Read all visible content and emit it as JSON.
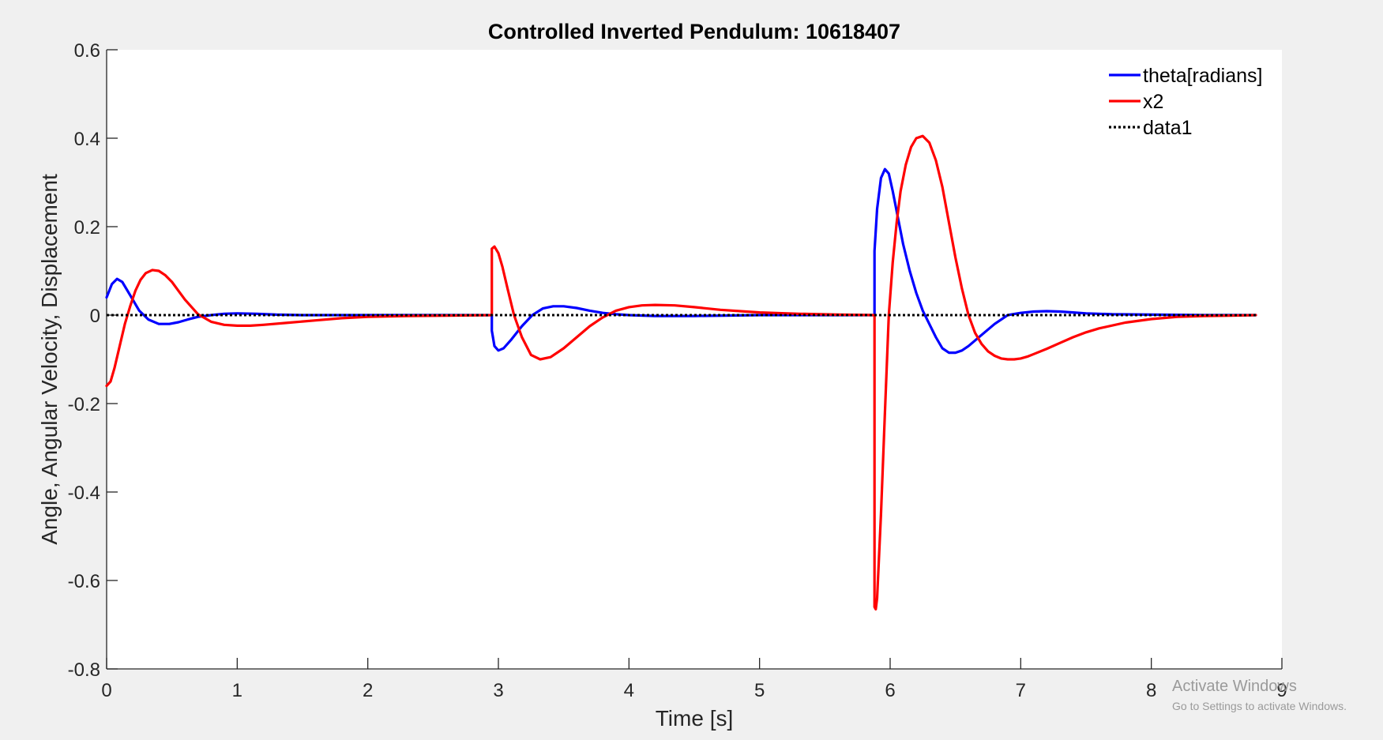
{
  "chart_data": {
    "type": "line",
    "title": "Controlled Inverted Pendulum: 10618407",
    "xlabel": "Time [s]",
    "ylabel": "Angle, Angular Velocity, Displacement",
    "xlim": [
      0,
      9
    ],
    "ylim": [
      -0.8,
      0.6
    ],
    "xticks": [
      0,
      1,
      2,
      3,
      4,
      5,
      6,
      7,
      8,
      9
    ],
    "yticks": [
      -0.8,
      -0.6,
      -0.4,
      -0.2,
      0,
      0.2,
      0.4,
      0.6
    ],
    "xtick_labels": [
      "0",
      "1",
      "2",
      "3",
      "4",
      "5",
      "6",
      "7",
      "8",
      "9"
    ],
    "ytick_labels": [
      "-0.8",
      "-0.6",
      "-0.4",
      "-0.2",
      "0",
      "0.2",
      "0.4",
      "0.6"
    ],
    "grid": false,
    "legend_position": "top-right",
    "series": [
      {
        "name": "theta[radians]",
        "color": "#0000ff",
        "style": "solid",
        "x": [
          0,
          0.04,
          0.08,
          0.12,
          0.18,
          0.25,
          0.32,
          0.4,
          0.48,
          0.55,
          0.62,
          0.7,
          0.8,
          0.9,
          1.0,
          1.15,
          1.3,
          1.5,
          1.8,
          2.2,
          2.6,
          2.95,
          2.95,
          2.97,
          3.0,
          3.04,
          3.1,
          3.18,
          3.26,
          3.34,
          3.42,
          3.5,
          3.6,
          3.7,
          3.8,
          3.9,
          4.0,
          4.2,
          4.5,
          5.0,
          5.5,
          5.88,
          5.88,
          5.9,
          5.93,
          5.96,
          5.99,
          6.02,
          6.06,
          6.1,
          6.15,
          6.2,
          6.25,
          6.3,
          6.35,
          6.4,
          6.45,
          6.5,
          6.55,
          6.6,
          6.7,
          6.8,
          6.9,
          7.0,
          7.1,
          7.2,
          7.3,
          7.4,
          7.5,
          7.7,
          8.0,
          8.4,
          8.8
        ],
        "y": [
          0.04,
          0.07,
          0.082,
          0.075,
          0.045,
          0.01,
          -0.01,
          -0.02,
          -0.02,
          -0.016,
          -0.01,
          -0.004,
          0.0,
          0.003,
          0.004,
          0.003,
          0.001,
          0.0,
          0.0,
          0.0,
          0.0,
          0.0,
          -0.035,
          -0.07,
          -0.08,
          -0.075,
          -0.055,
          -0.025,
          0.0,
          0.015,
          0.02,
          0.02,
          0.016,
          0.01,
          0.005,
          0.002,
          0.0,
          -0.002,
          -0.002,
          0.0,
          0.0,
          0.0,
          0.145,
          0.24,
          0.31,
          0.33,
          0.32,
          0.28,
          0.22,
          0.16,
          0.1,
          0.05,
          0.01,
          -0.02,
          -0.05,
          -0.075,
          -0.085,
          -0.085,
          -0.08,
          -0.07,
          -0.045,
          -0.02,
          0.0,
          0.005,
          0.008,
          0.009,
          0.008,
          0.006,
          0.004,
          0.002,
          0.001,
          0.0,
          0.0
        ]
      },
      {
        "name": "x2",
        "color": "#ff0000",
        "style": "solid",
        "x": [
          0,
          0.03,
          0.06,
          0.1,
          0.14,
          0.18,
          0.22,
          0.26,
          0.3,
          0.35,
          0.4,
          0.45,
          0.5,
          0.55,
          0.6,
          0.7,
          0.8,
          0.9,
          1.0,
          1.1,
          1.2,
          1.4,
          1.6,
          1.8,
          2.0,
          2.3,
          2.6,
          2.95,
          2.95,
          2.97,
          3.0,
          3.03,
          3.07,
          3.12,
          3.18,
          3.25,
          3.32,
          3.4,
          3.5,
          3.6,
          3.7,
          3.8,
          3.9,
          4.0,
          4.1,
          4.2,
          4.35,
          4.5,
          4.7,
          5.0,
          5.3,
          5.6,
          5.88,
          5.88,
          5.89,
          5.9,
          5.93,
          5.96,
          5.99,
          6.02,
          6.05,
          6.08,
          6.12,
          6.16,
          6.2,
          6.25,
          6.3,
          6.35,
          6.4,
          6.45,
          6.5,
          6.55,
          6.6,
          6.65,
          6.7,
          6.75,
          6.8,
          6.85,
          6.9,
          6.95,
          7.0,
          7.05,
          7.1,
          7.2,
          7.3,
          7.4,
          7.5,
          7.6,
          7.8,
          8.0,
          8.2,
          8.4,
          8.6,
          8.8
        ],
        "y": [
          -0.16,
          -0.15,
          -0.12,
          -0.07,
          -0.02,
          0.02,
          0.055,
          0.08,
          0.095,
          0.102,
          0.1,
          0.09,
          0.075,
          0.055,
          0.035,
          0.002,
          -0.015,
          -0.022,
          -0.024,
          -0.024,
          -0.022,
          -0.017,
          -0.012,
          -0.007,
          -0.004,
          -0.002,
          -0.001,
          0.0,
          0.15,
          0.155,
          0.14,
          0.11,
          0.06,
          0.0,
          -0.05,
          -0.09,
          -0.1,
          -0.095,
          -0.075,
          -0.05,
          -0.025,
          -0.005,
          0.01,
          0.018,
          0.022,
          0.023,
          0.022,
          0.018,
          0.012,
          0.006,
          0.003,
          0.001,
          0.0,
          -0.66,
          -0.665,
          -0.64,
          -0.45,
          -0.22,
          0.0,
          0.12,
          0.21,
          0.28,
          0.34,
          0.38,
          0.4,
          0.405,
          0.39,
          0.35,
          0.29,
          0.21,
          0.13,
          0.06,
          0.0,
          -0.04,
          -0.065,
          -0.082,
          -0.092,
          -0.098,
          -0.1,
          -0.1,
          -0.098,
          -0.094,
          -0.088,
          -0.076,
          -0.063,
          -0.05,
          -0.039,
          -0.03,
          -0.017,
          -0.009,
          -0.004,
          -0.002,
          -0.001,
          0.0
        ]
      },
      {
        "name": "data1",
        "color": "#000000",
        "style": "dotted",
        "x": [
          0,
          8.8
        ],
        "y": [
          0,
          0
        ]
      }
    ]
  },
  "watermark": {
    "line1": "Activate Windows",
    "line2": "Go to Settings to activate Windows."
  }
}
